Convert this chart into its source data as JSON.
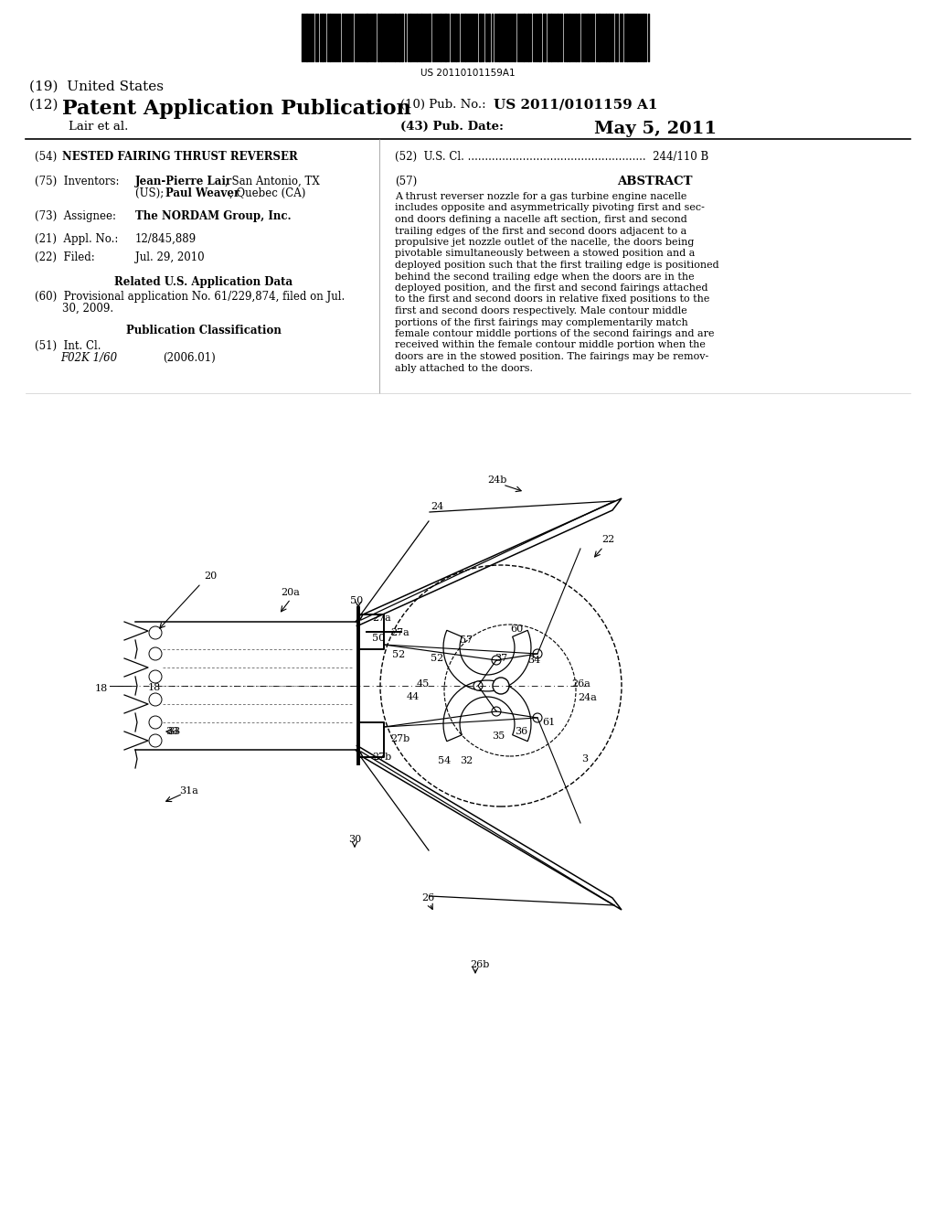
{
  "bg_color": "#ffffff",
  "barcode_text": "US 20110101159A1",
  "title_19": "(19)  United States",
  "title_12_prefix": "(12) ",
  "title_12_main": "Patent Application Publication",
  "pub_no_label": "(10) Pub. No.:",
  "pub_no_val": "US 2011/0101159 A1",
  "author": "Lair et al.",
  "pub_date_label": "(43) Pub. Date:",
  "pub_date": "May 5, 2011",
  "field_54_label": "(54) ",
  "field_54_val": "NESTED FAIRING THRUST REVERSER",
  "field_52": "(52)  U.S. Cl. ....................................................  244/110 B",
  "field_75_label": "(75)  Inventors:",
  "field_57_num": "(57)",
  "field_57_title": "ABSTRACT",
  "abstract_lines": [
    "A thrust reverser nozzle for a gas turbine engine nacelle",
    "includes opposite and asymmetrically pivoting first and sec-",
    "ond doors defining a nacelle aft section, first and second",
    "trailing edges of the first and second doors adjacent to a",
    "propulsive jet nozzle outlet of the nacelle, the doors being",
    "pivotable simultaneously between a stowed position and a",
    "deployed position such that the first trailing edge is positioned",
    "behind the second trailing edge when the doors are in the",
    "deployed position, and the first and second fairings attached",
    "to the first and second doors in relative fixed positions to the",
    "first and second doors respectively. Male contour middle",
    "portions of the first fairings may complementarily match",
    "female contour middle portions of the second fairings and are",
    "received within the female contour middle portion when the",
    "doors are in the stowed position. The fairings may be remov-",
    "ably attached to the doors."
  ],
  "field_73_label": "(73)  Assignee:",
  "field_73_val": "The NORDAM Group, Inc.",
  "field_21_label": "(21)  Appl. No.:",
  "field_21_val": "12/845,889",
  "field_22_label": "(22)  Filed:",
  "field_22_val": "Jul. 29, 2010",
  "related_title": "Related U.S. Application Data",
  "field_60_line1": "(60)  Provisional application No. 61/229,874, filed on Jul.",
  "field_60_line2": "        30, 2009.",
  "pub_class_title": "Publication Classification",
  "field_51_label": "(51)  Int. Cl.",
  "field_51_val1": "F02K 1/60",
  "field_51_val2": "(2006.01)"
}
